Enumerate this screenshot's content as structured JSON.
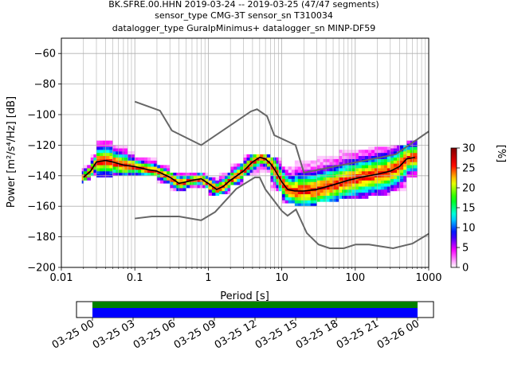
{
  "chart_data": {
    "type": "heatmap",
    "title_lines": [
      "BK.SFRE.00.HHN   2019-03-24 -- 2019-03-25  (47/47 segments)",
      "sensor_type CMG-3T sensor_sn T310034",
      "datalogger_type GuralpMinimus+ datalogger_sn MINP-DF59"
    ],
    "xlabel": "Period [s]",
    "ylabel": "Power [m²/s⁴/Hz] [dB]",
    "xscale": "log",
    "xlim": [
      0.01,
      1000
    ],
    "ylim": [
      -200,
      -50
    ],
    "xticks": [
      {
        "value": 0.01,
        "label": "0.01"
      },
      {
        "value": 0.1,
        "label": "0.1"
      },
      {
        "value": 1,
        "label": "1"
      },
      {
        "value": 10,
        "label": "10"
      },
      {
        "value": 100,
        "label": "100"
      },
      {
        "value": 1000,
        "label": "1000"
      }
    ],
    "yticks": [
      -200,
      -180,
      -160,
      -140,
      -120,
      -100,
      -80,
      -60
    ],
    "grid": true,
    "colorbar": {
      "label": "[%]",
      "range": [
        0,
        30
      ],
      "ticks": [
        0,
        5,
        10,
        15,
        20,
        25,
        30
      ],
      "colors": [
        "#ffffff",
        "#ff00ff",
        "#0000ff",
        "#00ffff",
        "#00ff00",
        "#ffff00",
        "#ff0000",
        "#800000"
      ]
    },
    "mean_curve": {
      "color": "#000000",
      "points": [
        [
          0.02,
          -141
        ],
        [
          0.025,
          -137
        ],
        [
          0.03,
          -131
        ],
        [
          0.04,
          -130
        ],
        [
          0.05,
          -131
        ],
        [
          0.07,
          -133
        ],
        [
          0.1,
          -134
        ],
        [
          0.15,
          -136
        ],
        [
          0.2,
          -137
        ],
        [
          0.3,
          -141
        ],
        [
          0.4,
          -145
        ],
        [
          0.5,
          -144
        ],
        [
          0.6,
          -143
        ],
        [
          0.8,
          -142
        ],
        [
          1.0,
          -145
        ],
        [
          1.3,
          -149
        ],
        [
          1.6,
          -147
        ],
        [
          2,
          -143
        ],
        [
          3,
          -137
        ],
        [
          4,
          -131
        ],
        [
          5,
          -128
        ],
        [
          6,
          -129
        ],
        [
          7,
          -132
        ],
        [
          8,
          -136
        ],
        [
          10,
          -144
        ],
        [
          12,
          -149
        ],
        [
          15,
          -150
        ],
        [
          20,
          -150
        ],
        [
          30,
          -149
        ],
        [
          50,
          -146
        ],
        [
          80,
          -143
        ],
        [
          120,
          -141
        ],
        [
          200,
          -139
        ],
        [
          300,
          -137
        ],
        [
          400,
          -134
        ],
        [
          500,
          -129
        ],
        [
          650,
          -128
        ]
      ]
    },
    "nhnm": {
      "color": "#666666",
      "points": [
        [
          0.1,
          -91.5
        ],
        [
          0.22,
          -97.4
        ],
        [
          0.32,
          -110.5
        ],
        [
          0.8,
          -120
        ],
        [
          3.8,
          -97.9
        ],
        [
          4.6,
          -96.5
        ],
        [
          6.3,
          -101
        ],
        [
          7.9,
          -113.5
        ],
        [
          15.4,
          -120
        ],
        [
          20,
          -138
        ],
        [
          354.8,
          -126
        ],
        [
          1000,
          -111
        ]
      ]
    },
    "nlnm": {
      "color": "#666666",
      "points": [
        [
          0.1,
          -168
        ],
        [
          0.17,
          -166.7
        ],
        [
          0.4,
          -166.7
        ],
        [
          0.8,
          -169.2
        ],
        [
          1.24,
          -163.7
        ],
        [
          2.4,
          -148.6
        ],
        [
          4.3,
          -141.1
        ],
        [
          5,
          -141.1
        ],
        [
          6,
          -149
        ],
        [
          10,
          -163
        ],
        [
          12,
          -166.2
        ],
        [
          15.6,
          -162.1
        ],
        [
          21.9,
          -177.5
        ],
        [
          31.6,
          -185
        ],
        [
          45,
          -187.5
        ],
        [
          70,
          -187.5
        ],
        [
          101,
          -185
        ],
        [
          154,
          -185
        ],
        [
          328,
          -187.5
        ],
        [
          600,
          -184.4
        ],
        [
          1000,
          -178
        ]
      ]
    },
    "pdf_bands": [
      {
        "p": [
          0.019,
          0.02
        ],
        "min": -145,
        "max": -136
      },
      {
        "p": [
          0.02,
          0.025
        ],
        "min": -143,
        "max": -133
      },
      {
        "p": [
          0.025,
          0.03
        ],
        "min": -140,
        "max": -127
      },
      {
        "p": [
          0.03,
          0.05
        ],
        "min": -141,
        "max": -117
      },
      {
        "p": [
          0.05,
          0.08
        ],
        "min": -140,
        "max": -120
      },
      {
        "p": [
          0.08,
          0.1
        ],
        "min": -140,
        "max": -125
      },
      {
        "p": [
          0.1,
          0.2
        ],
        "min": -140,
        "max": -128
      },
      {
        "p": [
          0.2,
          0.3
        ],
        "min": -145,
        "max": -134
      },
      {
        "p": [
          0.3,
          0.5
        ],
        "min": -150,
        "max": -138
      },
      {
        "p": [
          0.5,
          0.7
        ],
        "min": -148,
        "max": -139
      },
      {
        "p": [
          0.7,
          1.0
        ],
        "min": -148,
        "max": -138
      },
      {
        "p": [
          1.0,
          1.4
        ],
        "min": -153,
        "max": -141
      },
      {
        "p": [
          1.4,
          2
        ],
        "min": -152,
        "max": -139
      },
      {
        "p": [
          2,
          3
        ],
        "min": -146,
        "max": -132
      },
      {
        "p": [
          3,
          5
        ],
        "min": -140,
        "max": -126
      },
      {
        "p": [
          5,
          7
        ],
        "min": -138,
        "max": -126
      },
      {
        "p": [
          7,
          10
        ],
        "min": -150,
        "max": -128
      },
      {
        "p": [
          10,
          15
        ],
        "min": -158,
        "max": -135
      },
      {
        "p": [
          15,
          30
        ],
        "min": -160,
        "max": -131
      },
      {
        "p": [
          30,
          60
        ],
        "min": -157,
        "max": -127
      },
      {
        "p": [
          60,
          150
        ],
        "min": -155,
        "max": -124
      },
      {
        "p": [
          150,
          300
        ],
        "min": -153,
        "max": -122
      },
      {
        "p": [
          300,
          500
        ],
        "min": -150,
        "max": -120
      },
      {
        "p": [
          500,
          700
        ],
        "min": -141,
        "max": -117
      }
    ],
    "timeline": {
      "tick_labels": [
        "03-25 00",
        "03-25 03",
        "03-25 06",
        "03-25 09",
        "03-25 12",
        "03-25 15",
        "03-25 18",
        "03-25 21",
        "03-26 00"
      ],
      "coverage_start_fraction": 0.0,
      "coverage_end_fraction": 1.0,
      "colors": [
        "#008000",
        "#0000ff"
      ]
    }
  }
}
